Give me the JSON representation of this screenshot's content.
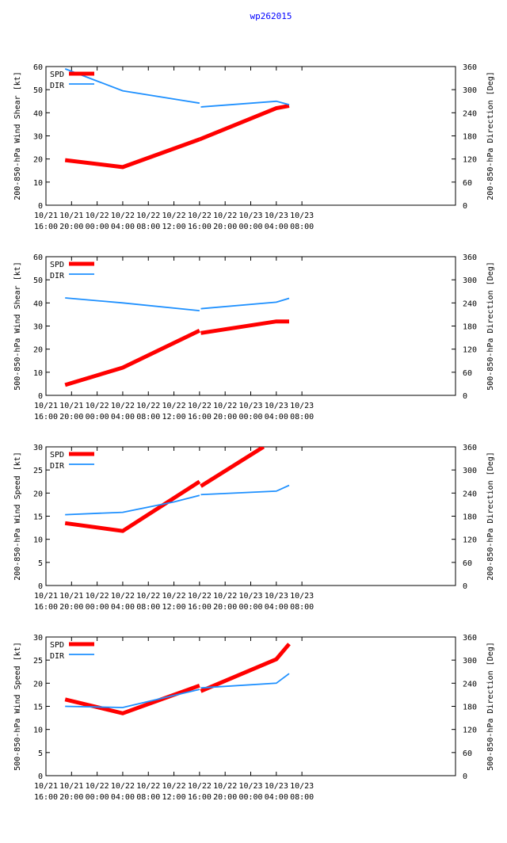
{
  "title": "wp262015",
  "colors": {
    "spd": "#ff0000",
    "dir": "#1e90ff",
    "title": "#0000ff",
    "axis": "#000000"
  },
  "legend": {
    "spd": "SPD",
    "dir": "DIR"
  },
  "x_axis": {
    "range_hours": [
      0,
      64
    ],
    "ticks": [
      {
        "h": 0,
        "date": "10/21",
        "time": "16:00"
      },
      {
        "h": 4,
        "date": "10/21",
        "time": "20:00"
      },
      {
        "h": 8,
        "date": "10/22",
        "time": "00:00"
      },
      {
        "h": 12,
        "date": "10/22",
        "time": "04:00"
      },
      {
        "h": 16,
        "date": "10/22",
        "time": "08:00"
      },
      {
        "h": 20,
        "date": "10/22",
        "time": "12:00"
      },
      {
        "h": 24,
        "date": "10/22",
        "time": "16:00"
      },
      {
        "h": 28,
        "date": "10/22",
        "time": "20:00"
      },
      {
        "h": 32,
        "date": "10/23",
        "time": "00:00"
      },
      {
        "h": 36,
        "date": "10/23",
        "time": "04:00"
      },
      {
        "h": 40,
        "date": "10/23",
        "time": "08:00"
      }
    ]
  },
  "chart_data": [
    {
      "type": "line",
      "ylabel": "200-850-hPa Wind Shear [kt]",
      "y2label": "200-850-hPa Direction [Deg]",
      "ylim": [
        0,
        60
      ],
      "yticks": [
        0,
        10,
        20,
        30,
        40,
        50,
        60
      ],
      "y2lim": [
        0,
        360
      ],
      "y2ticks": [
        0,
        60,
        120,
        180,
        240,
        300,
        360
      ],
      "series": [
        {
          "name": "SPD",
          "axis": "left",
          "segments": [
            [
              [
                3,
                19.5
              ],
              [
                12,
                16.5
              ],
              [
                24,
                28.5
              ]
            ],
            [
              [
                24,
                28.5
              ],
              [
                36,
                42
              ],
              [
                38,
                43
              ]
            ]
          ]
        },
        {
          "name": "DIR",
          "axis": "right",
          "segments": [
            [
              [
                3,
                354
              ],
              [
                12,
                297
              ],
              [
                24,
                265
              ]
            ],
            [
              [
                24.2,
                255
              ],
              [
                36,
                270
              ],
              [
                38,
                261
              ]
            ]
          ]
        }
      ]
    },
    {
      "type": "line",
      "ylabel": "500-850-hPa Wind Shear [kt]",
      "y2label": "500-850-hPa Direction [Deg]",
      "ylim": [
        0,
        60
      ],
      "yticks": [
        0,
        10,
        20,
        30,
        40,
        50,
        60
      ],
      "y2lim": [
        0,
        360
      ],
      "y2ticks": [
        0,
        60,
        120,
        180,
        240,
        300,
        360
      ],
      "series": [
        {
          "name": "SPD",
          "axis": "left",
          "segments": [
            [
              [
                3,
                4.5
              ],
              [
                12,
                12
              ],
              [
                24,
                28
              ]
            ],
            [
              [
                24.2,
                27
              ],
              [
                36,
                32
              ],
              [
                38,
                32
              ]
            ]
          ]
        },
        {
          "name": "DIR",
          "axis": "right",
          "segments": [
            [
              [
                3,
                253
              ],
              [
                12,
                240
              ],
              [
                24,
                220
              ]
            ],
            [
              [
                24.2,
                225
              ],
              [
                36,
                242
              ],
              [
                38,
                252
              ]
            ]
          ]
        }
      ]
    },
    {
      "type": "line",
      "ylabel": "200-850-hPa Wind Speed [kt]",
      "y2label": "200-850-hPa Direction [Deg]",
      "ylim": [
        0,
        30
      ],
      "yticks": [
        0,
        5,
        10,
        15,
        20,
        25,
        30
      ],
      "y2lim": [
        0,
        360
      ],
      "y2ticks": [
        0,
        60,
        120,
        180,
        240,
        300,
        360
      ],
      "series": [
        {
          "name": "SPD",
          "axis": "left",
          "segments": [
            [
              [
                3,
                13.5
              ],
              [
                12,
                11.8
              ],
              [
                24,
                22.5
              ]
            ],
            [
              [
                24.2,
                21.5
              ],
              [
                34,
                30
              ]
            ]
          ]
        },
        {
          "name": "DIR",
          "axis": "right",
          "segments": [
            [
              [
                3,
                184
              ],
              [
                12,
                190
              ],
              [
                20,
                217
              ],
              [
                24,
                234
              ]
            ],
            [
              [
                24.2,
                236
              ],
              [
                36,
                245
              ],
              [
                38,
                260
              ]
            ]
          ]
        }
      ]
    },
    {
      "type": "line",
      "ylabel": "500-850-hPa Wind Speed [kt]",
      "y2label": "500-850-hPa Direction [Deg]",
      "ylim": [
        0,
        30
      ],
      "yticks": [
        0,
        5,
        10,
        15,
        20,
        25,
        30
      ],
      "y2lim": [
        0,
        360
      ],
      "y2ticks": [
        0,
        60,
        120,
        180,
        240,
        300,
        360
      ],
      "series": [
        {
          "name": "SPD",
          "axis": "left",
          "segments": [
            [
              [
                3,
                16.5
              ],
              [
                12,
                13.5
              ],
              [
                24,
                19.5
              ]
            ],
            [
              [
                24.2,
                18.3
              ],
              [
                36,
                25.2
              ],
              [
                38,
                28.5
              ]
            ]
          ]
        },
        {
          "name": "DIR",
          "axis": "right",
          "segments": [
            [
              [
                3,
                180
              ],
              [
                12,
                177
              ],
              [
                24,
                224
              ]
            ],
            [
              [
                24.2,
                228
              ],
              [
                36,
                240
              ],
              [
                38,
                265
              ]
            ]
          ]
        }
      ]
    }
  ]
}
